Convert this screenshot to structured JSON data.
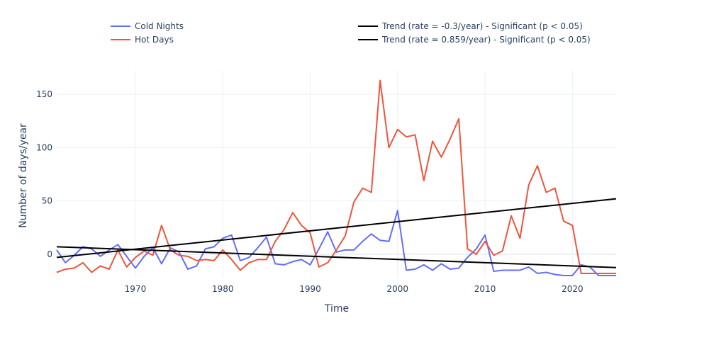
{
  "chart_data": {
    "type": "line",
    "title": "",
    "xlabel": "Time",
    "ylabel": "Number of days/year",
    "xlim": [
      1961,
      2025
    ],
    "ylim": [
      -22,
      172
    ],
    "xticks": [
      1970,
      1980,
      1990,
      2000,
      2010,
      2020
    ],
    "yticks": [
      0,
      50,
      100,
      150
    ],
    "grid": true,
    "legend_position": "top",
    "x": [
      1961,
      1962,
      1963,
      1964,
      1965,
      1966,
      1967,
      1968,
      1969,
      1970,
      1971,
      1972,
      1973,
      1974,
      1975,
      1976,
      1977,
      1978,
      1979,
      1980,
      1981,
      1982,
      1983,
      1984,
      1985,
      1986,
      1987,
      1988,
      1989,
      1990,
      1991,
      1992,
      1993,
      1994,
      1995,
      1996,
      1997,
      1998,
      1999,
      2000,
      2001,
      2002,
      2003,
      2004,
      2005,
      2006,
      2007,
      2008,
      2009,
      2010,
      2011,
      2012,
      2013,
      2014,
      2015,
      2016,
      2017,
      2018,
      2019,
      2020,
      2021,
      2022,
      2023,
      2024,
      2025
    ],
    "series": [
      {
        "name": "Cold Nights",
        "color": "#636efa",
        "values": [
          4,
          -8,
          -1,
          7,
          5,
          -2,
          4,
          9,
          -2,
          -13,
          -2,
          6,
          -9,
          6,
          2,
          -14,
          -11,
          5,
          7,
          15,
          18,
          -6,
          -3,
          6,
          16,
          -9,
          -10,
          -7,
          -5,
          -10,
          5,
          21,
          2,
          4,
          4,
          12,
          19,
          13,
          12,
          41,
          -15,
          -14,
          -10,
          -15,
          -9,
          -14,
          -13,
          -3,
          5,
          18,
          -16,
          -15,
          -15,
          -15,
          -12,
          -18,
          -17,
          -19,
          -20,
          -20,
          -10,
          -12,
          -20,
          -20,
          -20
        ]
      },
      {
        "name": "Hot Days",
        "color": "#ef553b",
        "values": [
          -17,
          -14,
          -13,
          -8,
          -17,
          -11,
          -14,
          4,
          -12,
          -3,
          3,
          -1,
          27,
          4,
          -1,
          -2,
          -6,
          -5,
          -6,
          4,
          -5,
          -15,
          -8,
          -5,
          -5,
          12,
          23,
          39,
          27,
          20,
          -12,
          -8,
          4,
          17,
          49,
          62,
          58,
          163,
          100,
          117,
          110,
          112,
          69,
          106,
          91,
          108,
          127,
          5,
          0,
          12,
          -1,
          3,
          36,
          15,
          65,
          83,
          58,
          62,
          31,
          27,
          -18,
          -18,
          -18,
          -18,
          -18
        ]
      },
      {
        "name": "Trend (rate = -0.3/year) - Significant (p < 0.05)",
        "color": "#000000",
        "trend": true,
        "endpoints": [
          [
            1961,
            7
          ],
          [
            2025,
            -12.5
          ]
        ]
      },
      {
        "name": "Trend (rate = 0.859/year) - Significant (p < 0.05)",
        "color": "#000000",
        "trend": true,
        "endpoints": [
          [
            1961,
            -3
          ],
          [
            2025,
            52
          ]
        ]
      }
    ]
  }
}
